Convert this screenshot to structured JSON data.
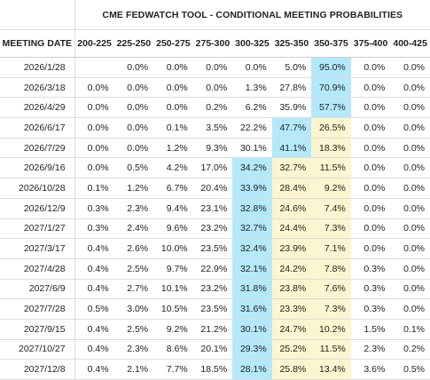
{
  "table": {
    "title": "CME FEDWATCH TOOL - CONDITIONAL MEETING PROBABILITIES",
    "columns": {
      "date": "MEETING DATE",
      "bins": [
        "200-225",
        "225-250",
        "250-275",
        "275-300",
        "300-325",
        "325-350",
        "350-375",
        "375-400",
        "400-425"
      ]
    },
    "rows": [
      {
        "date": "2026/1/28",
        "cells": [
          "",
          "0.0%",
          "0.0%",
          "0.0%",
          "0.0%",
          "5.0%",
          "95.0%",
          "0.0%",
          "0.0%"
        ]
      },
      {
        "date": "2026/3/18",
        "cells": [
          "0.0%",
          "0.0%",
          "0.0%",
          "0.0%",
          "1.3%",
          "27.8%",
          "70.9%",
          "0.0%",
          "0.0%"
        ]
      },
      {
        "date": "2026/4/29",
        "cells": [
          "0.0%",
          "0.0%",
          "0.0%",
          "0.2%",
          "6.2%",
          "35.9%",
          "57.7%",
          "0.0%",
          "0.0%"
        ]
      },
      {
        "date": "2026/6/17",
        "cells": [
          "0.0%",
          "0.0%",
          "0.1%",
          "3.5%",
          "22.2%",
          "47.7%",
          "26.5%",
          "0.0%",
          "0.0%"
        ]
      },
      {
        "date": "2026/7/29",
        "cells": [
          "0.0%",
          "0.0%",
          "1.2%",
          "9.3%",
          "30.1%",
          "41.1%",
          "18.3%",
          "0.0%",
          "0.0%"
        ]
      },
      {
        "date": "2026/9/16",
        "cells": [
          "0.0%",
          "0.5%",
          "4.2%",
          "17.0%",
          "34.2%",
          "32.7%",
          "11.5%",
          "0.0%",
          "0.0%"
        ]
      },
      {
        "date": "2026/10/28",
        "cells": [
          "0.1%",
          "1.2%",
          "6.7%",
          "20.4%",
          "33.9%",
          "28.4%",
          "9.2%",
          "0.0%",
          "0.0%"
        ]
      },
      {
        "date": "2026/12/9",
        "cells": [
          "0.3%",
          "2.3%",
          "9.4%",
          "23.1%",
          "32.8%",
          "24.6%",
          "7.4%",
          "0.0%",
          "0.0%"
        ]
      },
      {
        "date": "2027/1/27",
        "cells": [
          "0.3%",
          "2.4%",
          "9.6%",
          "23.2%",
          "32.7%",
          "24.4%",
          "7.3%",
          "0.0%",
          "0.0%"
        ]
      },
      {
        "date": "2027/3/17",
        "cells": [
          "0.4%",
          "2.6%",
          "10.0%",
          "23.5%",
          "32.4%",
          "23.9%",
          "7.1%",
          "0.0%",
          "0.0%"
        ]
      },
      {
        "date": "2027/4/28",
        "cells": [
          "0.4%",
          "2.5%",
          "9.7%",
          "22.9%",
          "32.1%",
          "24.2%",
          "7.8%",
          "0.3%",
          "0.0%"
        ]
      },
      {
        "date": "2027/6/9",
        "cells": [
          "0.4%",
          "2.7%",
          "10.1%",
          "23.2%",
          "31.8%",
          "23.8%",
          "7.6%",
          "0.3%",
          "0.0%"
        ]
      },
      {
        "date": "2027/7/28",
        "cells": [
          "0.5%",
          "3.0%",
          "10.5%",
          "23.5%",
          "31.6%",
          "23.3%",
          "7.3%",
          "0.3%",
          "0.0%"
        ]
      },
      {
        "date": "2027/9/15",
        "cells": [
          "0.4%",
          "2.5%",
          "9.2%",
          "21.2%",
          "30.1%",
          "24.7%",
          "10.2%",
          "1.5%",
          "0.1%"
        ]
      },
      {
        "date": "2027/10/27",
        "cells": [
          "0.4%",
          "2.3%",
          "8.6%",
          "20.1%",
          "29.3%",
          "25.2%",
          "11.5%",
          "2.3%",
          "0.2%"
        ]
      },
      {
        "date": "2027/12/8",
        "cells": [
          "0.4%",
          "2.1%",
          "7.7%",
          "18.5%",
          "28.1%",
          "25.8%",
          "13.4%",
          "3.6%",
          "0.5%"
        ]
      }
    ],
    "highlight": {
      "blue": "#b3e9fb",
      "yellow": "#fbf6cf",
      "cells": [
        [
          0,
          6,
          "blue"
        ],
        [
          1,
          6,
          "blue"
        ],
        [
          2,
          6,
          "blue"
        ],
        [
          3,
          5,
          "blue"
        ],
        [
          3,
          6,
          "yellow"
        ],
        [
          4,
          5,
          "blue"
        ],
        [
          4,
          6,
          "yellow"
        ],
        [
          5,
          4,
          "blue"
        ],
        [
          5,
          5,
          "yellow"
        ],
        [
          5,
          6,
          "yellow"
        ],
        [
          6,
          4,
          "blue"
        ],
        [
          6,
          5,
          "yellow"
        ],
        [
          6,
          6,
          "yellow"
        ],
        [
          7,
          4,
          "blue"
        ],
        [
          7,
          5,
          "yellow"
        ],
        [
          7,
          6,
          "yellow"
        ],
        [
          8,
          4,
          "blue"
        ],
        [
          8,
          5,
          "yellow"
        ],
        [
          8,
          6,
          "yellow"
        ],
        [
          9,
          4,
          "blue"
        ],
        [
          9,
          5,
          "yellow"
        ],
        [
          9,
          6,
          "yellow"
        ],
        [
          10,
          4,
          "blue"
        ],
        [
          10,
          5,
          "yellow"
        ],
        [
          10,
          6,
          "yellow"
        ],
        [
          11,
          4,
          "blue"
        ],
        [
          11,
          5,
          "yellow"
        ],
        [
          11,
          6,
          "yellow"
        ],
        [
          12,
          4,
          "blue"
        ],
        [
          12,
          5,
          "yellow"
        ],
        [
          12,
          6,
          "yellow"
        ],
        [
          13,
          4,
          "blue"
        ],
        [
          13,
          5,
          "yellow"
        ],
        [
          13,
          6,
          "yellow"
        ],
        [
          14,
          4,
          "blue"
        ],
        [
          14,
          5,
          "yellow"
        ],
        [
          14,
          6,
          "yellow"
        ],
        [
          15,
          4,
          "blue"
        ],
        [
          15,
          5,
          "yellow"
        ],
        [
          15,
          6,
          "yellow"
        ]
      ]
    }
  }
}
